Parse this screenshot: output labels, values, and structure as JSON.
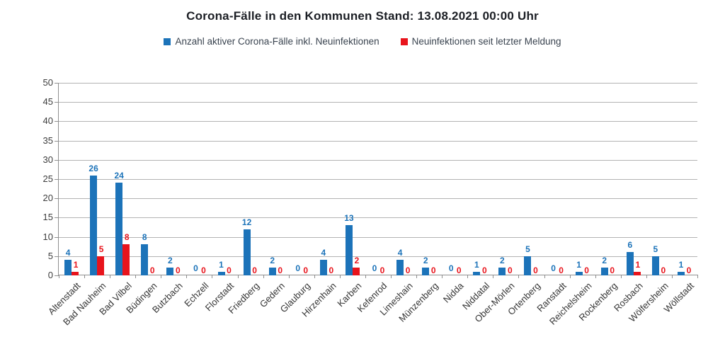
{
  "title": "Corona-Fälle in den Kommunen Stand: 13.08.2021 00:00 Uhr",
  "legend": {
    "items": [
      {
        "label": "Anzahl aktiver Corona-Fälle inkl. Neuinfektionen",
        "color": "#1c73b9"
      },
      {
        "label": "Neuinfektionen seit letzter Meldung",
        "color": "#e8141c"
      }
    ]
  },
  "colors": {
    "blue": "#1c73b9",
    "red": "#e8141c",
    "grid": "#b3b3b3",
    "axis": "#8f8f8f",
    "title_text": "#1b1e24",
    "legend_text": "#39434f",
    "ytick_text": "#3d3d3d",
    "xtick_text": "#363636"
  },
  "chart_data": {
    "type": "bar",
    "title": "Corona-Fälle in den Kommunen Stand: 13.08.2021 00:00 Uhr",
    "categories": [
      "Altenstadt",
      "Bad Nauheim",
      "Bad Vilbel",
      "Büdingen",
      "Butzbach",
      "Echzell",
      "Florstadt",
      "Friedberg",
      "Gedern",
      "Glauburg",
      "Hirzenhain",
      "Karben",
      "Kefenrod",
      "Limeshain",
      "Münzenberg",
      "Nidda",
      "Niddatal",
      "Ober-Mörlen",
      "Ortenberg",
      "Ranstadt",
      "Reichelsheim",
      "Rockenberg",
      "Rosbach",
      "Wölfersheim",
      "Wöllstadt"
    ],
    "series": [
      {
        "name": "Anzahl aktiver Corona-Fälle inkl. Neuinfektionen",
        "color": "#1c73b9",
        "values": [
          4,
          26,
          24,
          8,
          2,
          0,
          1,
          12,
          2,
          0,
          4,
          13,
          0,
          4,
          2,
          0,
          1,
          2,
          5,
          0,
          1,
          2,
          6,
          5,
          1
        ]
      },
      {
        "name": "Neuinfektionen seit letzter Meldung",
        "color": "#e8141c",
        "values": [
          1,
          5,
          8,
          0,
          0,
          0,
          0,
          0,
          0,
          0,
          0,
          2,
          0,
          0,
          0,
          0,
          0,
          0,
          0,
          0,
          0,
          0,
          1,
          0,
          0
        ]
      }
    ],
    "xlabel": "",
    "ylabel": "",
    "ylim": [
      0,
      50
    ],
    "ytick_step": 5,
    "grid": true,
    "legend_position": "top",
    "data_labels": true
  }
}
